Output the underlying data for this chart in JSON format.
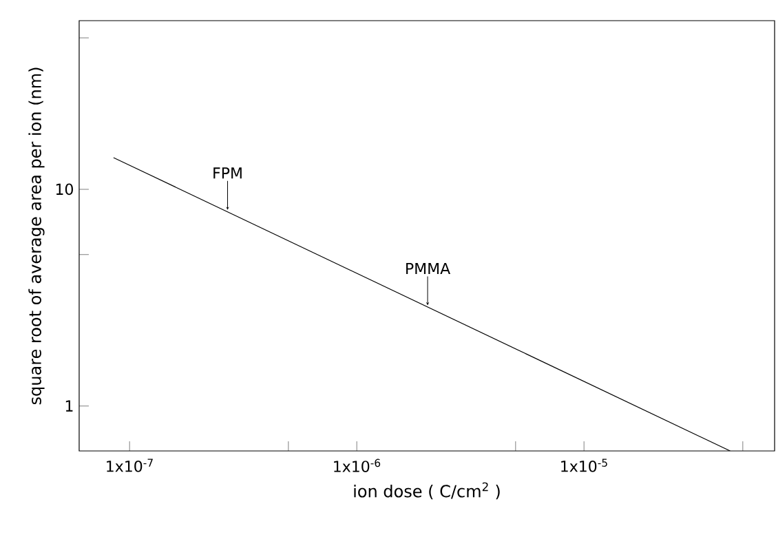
{
  "chart_data": {
    "type": "line",
    "xlabel": "ion dose ( C/cm$^{2}$ )",
    "ylabel": "square root of average area per ion (nm)",
    "x": [
      8.5e-08,
      4.4e-05
    ],
    "values": [
      14,
      0.62
    ],
    "color": "#000000",
    "log": "xy",
    "xlim": [
      6e-08,
      6.9e-05
    ],
    "ylim": [
      0.62,
      60
    ],
    "xticks": [
      {
        "value": 1e-07,
        "label": "1x10$^{-7}$"
      },
      {
        "value": 5e-07,
        "label": null
      },
      {
        "value": 1e-06,
        "label": "1x10$^{-6}$"
      },
      {
        "value": 5e-06,
        "label": null
      },
      {
        "value": 1e-05,
        "label": "1x10$^{-5}$"
      },
      {
        "value": 5e-05,
        "label": null
      }
    ],
    "yticks": [
      1,
      {
        "value": 5,
        "label": null
      },
      10,
      {
        "value": 50,
        "label": null
      }
    ],
    "grid": false,
    "marker": "none",
    "line_style": "solid",
    "annotations": [
      {
        "text": "FPM",
        "x": 2.7e-07,
        "y": 7.86
      },
      {
        "text": "PMMA",
        "x": 2.05e-06,
        "y": 2.85
      }
    ]
  }
}
